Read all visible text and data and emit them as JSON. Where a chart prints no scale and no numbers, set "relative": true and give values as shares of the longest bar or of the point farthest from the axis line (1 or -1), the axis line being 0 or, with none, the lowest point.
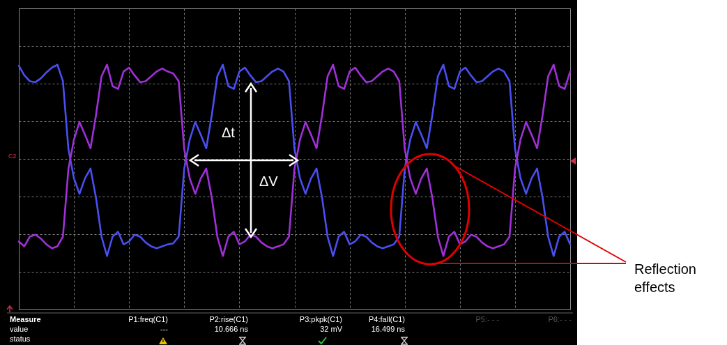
{
  "chart_data": {
    "type": "line",
    "relative": true,
    "grid": true,
    "line_style": "solid",
    "marker": "none",
    "categories": [
      null,
      null,
      null,
      null,
      null,
      null,
      null,
      null,
      null,
      null,
      null,
      null,
      null,
      null,
      null,
      null,
      null,
      null,
      null,
      null,
      null,
      null,
      null,
      null,
      null,
      null,
      null,
      null,
      null,
      null,
      null,
      null,
      null,
      null,
      null,
      null,
      null,
      null,
      null,
      null,
      null,
      null,
      null,
      null,
      null,
      null,
      null,
      null,
      null,
      null,
      null,
      null,
      null,
      null,
      null,
      null,
      null,
      null,
      null,
      null,
      null,
      null,
      null,
      null,
      null,
      null,
      null,
      null,
      null,
      null,
      null,
      null,
      null,
      null,
      null,
      null,
      null,
      null,
      null,
      null,
      null,
      null,
      null,
      null,
      null,
      null,
      null,
      null,
      null,
      null,
      null,
      null,
      null,
      null,
      null,
      null,
      null,
      null,
      null,
      null,
      null
    ],
    "series": [
      {
        "color": "#4a4ff0",
        "values": [
          0.96,
          0.86,
          0.8,
          0.79,
          0.83,
          0.89,
          0.94,
          0.97,
          0.8,
          0.1,
          -0.2,
          -0.36,
          -0.2,
          -0.1,
          -0.4,
          -0.8,
          -1.0,
          -0.8,
          -0.75,
          -0.88,
          -0.85,
          -0.78,
          -0.8,
          -0.86,
          -0.9,
          -0.92,
          -0.9,
          -0.88,
          -0.87,
          -0.8,
          -0.1,
          0.2,
          0.38,
          0.25,
          0.11,
          0.45,
          0.85,
          0.97,
          0.75,
          0.72,
          0.9,
          0.94,
          0.86,
          0.79,
          0.8,
          0.85,
          0.9,
          0.93,
          0.9,
          0.8,
          0.1,
          -0.2,
          -0.36,
          -0.2,
          -0.1,
          -0.4,
          -0.8,
          -1.0,
          -0.8,
          -0.75,
          -0.88,
          -0.85,
          -0.78,
          -0.8,
          -0.86,
          -0.9,
          -0.92,
          -0.9,
          -0.88,
          -0.8,
          -0.1,
          0.2,
          0.38,
          0.25,
          0.11,
          0.45,
          0.85,
          0.97,
          0.75,
          0.72,
          0.9,
          0.94,
          0.86,
          0.79,
          0.8,
          0.85,
          0.9,
          0.93,
          0.9,
          0.8,
          0.1,
          -0.2,
          -0.36,
          -0.2,
          -0.1,
          -0.4,
          -0.8,
          -1.0,
          -0.8,
          -0.75,
          -0.88
        ]
      },
      {
        "color": "#a030d8",
        "values": [
          -0.85,
          -0.9,
          -0.8,
          -0.78,
          -0.82,
          -0.88,
          -0.92,
          -0.9,
          -0.8,
          -0.1,
          0.2,
          0.38,
          0.25,
          0.11,
          0.45,
          0.85,
          0.97,
          0.75,
          0.72,
          0.9,
          0.94,
          0.86,
          0.79,
          0.8,
          0.85,
          0.9,
          0.93,
          0.9,
          0.88,
          0.8,
          0.1,
          -0.2,
          -0.36,
          -0.2,
          -0.1,
          -0.4,
          -0.8,
          -1.0,
          -0.8,
          -0.75,
          -0.88,
          -0.85,
          -0.78,
          -0.8,
          -0.86,
          -0.9,
          -0.92,
          -0.9,
          -0.88,
          -0.8,
          -0.1,
          0.2,
          0.38,
          0.25,
          0.11,
          0.45,
          0.85,
          0.97,
          0.75,
          0.72,
          0.9,
          0.94,
          0.86,
          0.79,
          0.8,
          0.85,
          0.9,
          0.93,
          0.9,
          0.8,
          0.1,
          -0.2,
          -0.36,
          -0.2,
          -0.1,
          -0.4,
          -0.8,
          -1.0,
          -0.8,
          -0.75,
          -0.88,
          -0.85,
          -0.78,
          -0.8,
          -0.86,
          -0.9,
          -0.92,
          -0.9,
          -0.88,
          -0.8,
          -0.1,
          0.2,
          0.38,
          0.25,
          0.11,
          0.45,
          0.85,
          0.97,
          0.75,
          0.72,
          0.9
        ]
      }
    ],
    "annotations": [
      "Δt",
      "ΔV",
      "Reflection effects",
      "C2",
      "Measure",
      "P1:freq(C1)",
      "P2:rise(C1)",
      "P3:pkpk(C1)",
      "P4:fall(C1)",
      "P5:- - -",
      "P6:- - -",
      "value",
      "---",
      "10.666 ns",
      "32 mV",
      "16.499 ns",
      "status"
    ]
  }
}
